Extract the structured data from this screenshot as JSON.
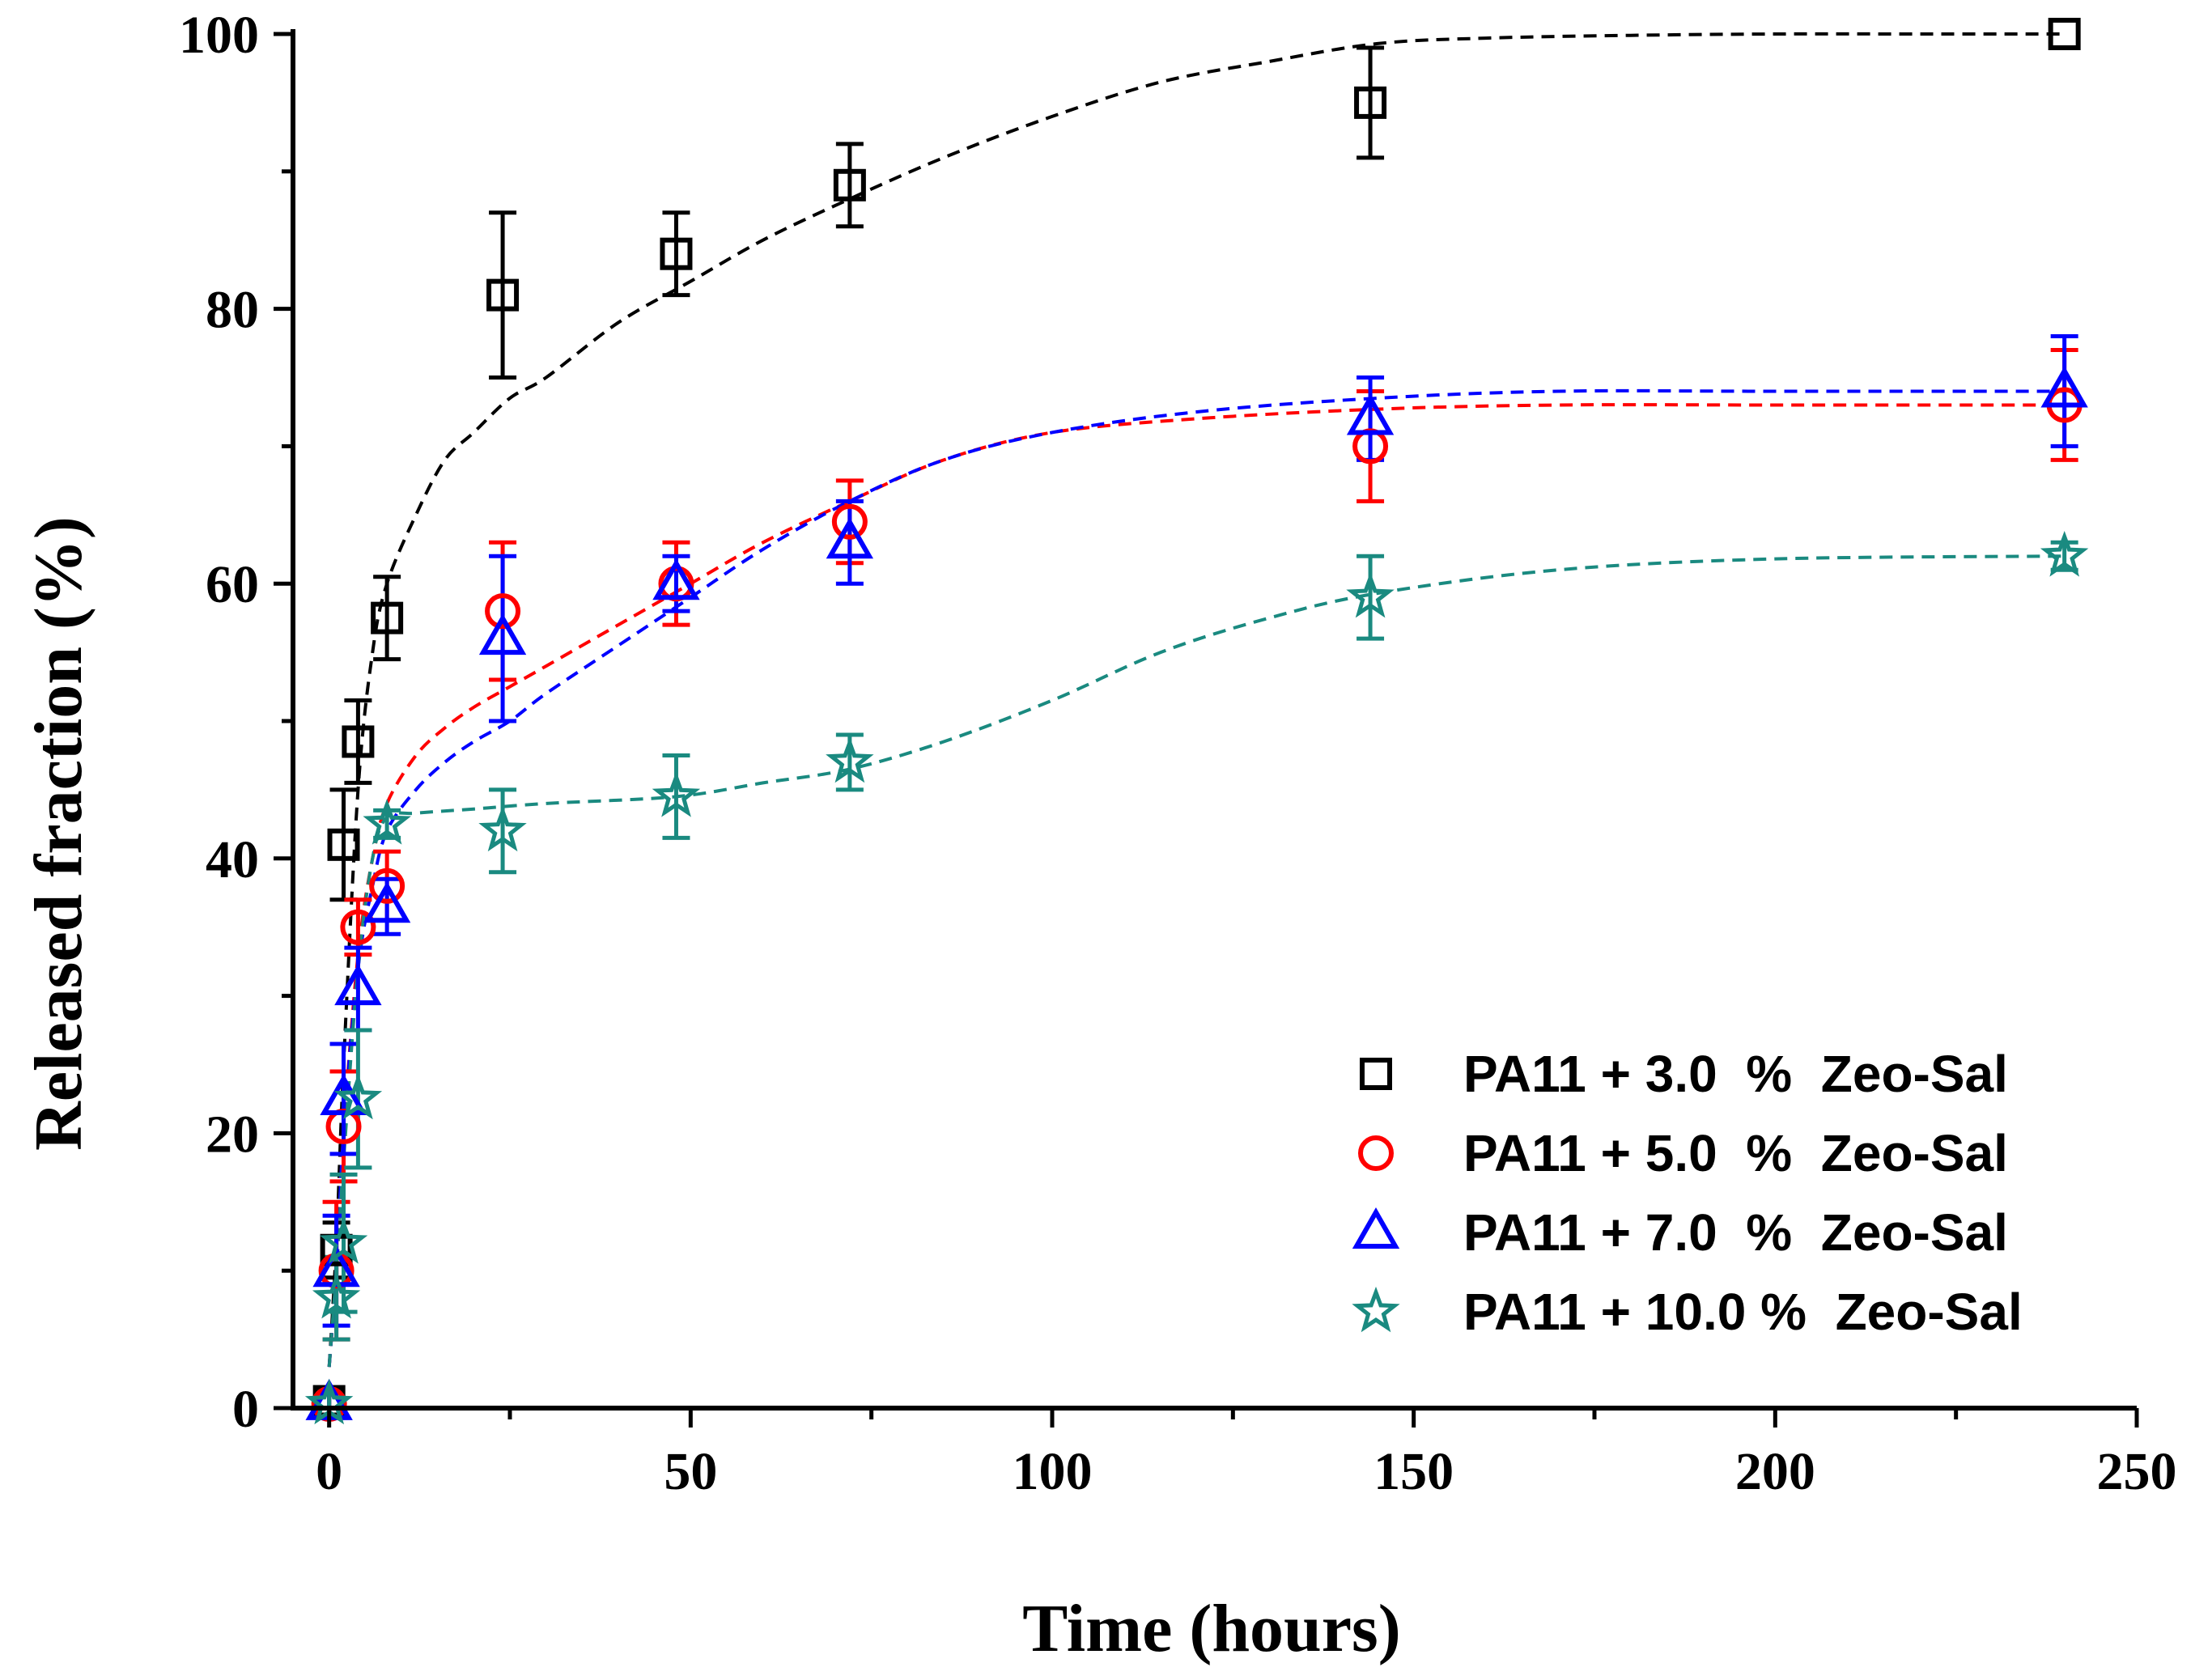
{
  "chart_data": {
    "type": "scatter",
    "title": "",
    "xlabel": "Time (hours)",
    "ylabel": "Released fraction (%)",
    "xlim": [
      -5,
      250
    ],
    "ylim": [
      0,
      100
    ],
    "xticks": [
      0,
      50,
      100,
      150,
      200,
      250
    ],
    "yticks": [
      0,
      20,
      40,
      60,
      80,
      100
    ],
    "x_tick_labels": [
      "0",
      "50",
      "100",
      "150",
      "200",
      "250"
    ],
    "y_tick_labels": [
      "0",
      "20",
      "40",
      "60",
      "80",
      "100"
    ],
    "grid": false,
    "legend_position": "bottom-right",
    "series": [
      {
        "name": "PA11 + 3.0  %  Zeo-Sal",
        "marker": "square",
        "color": "#000000",
        "x": [
          0,
          1,
          2,
          4,
          8,
          24,
          48,
          72,
          144,
          240
        ],
        "y": [
          0.5,
          11.5,
          41,
          48.5,
          57.5,
          81,
          84,
          89,
          95,
          100
        ],
        "err": [
          1,
          2,
          4,
          3,
          3,
          6,
          3,
          3,
          4,
          0.5
        ],
        "fit": {
          "x": [
            0,
            1,
            2,
            4,
            6,
            8,
            12,
            16,
            20,
            25,
            30,
            40,
            50,
            60,
            72,
            85,
            100,
            115,
            130,
            145,
            160,
            180,
            200,
            220,
            240
          ],
          "y": [
            3,
            12,
            25,
            45,
            55,
            60,
            65,
            69,
            71,
            73.5,
            75,
            79,
            82,
            85,
            88,
            91,
            94,
            96.5,
            98,
            99.3,
            99.7,
            99.9,
            100,
            100,
            100
          ]
        }
      },
      {
        "name": "PA11 + 5.0  %  Zeo-Sal",
        "marker": "circle",
        "color": "#ff0000",
        "x": [
          0,
          1,
          2,
          4,
          8,
          24,
          48,
          72,
          144,
          240
        ],
        "y": [
          0.3,
          10,
          20.5,
          35,
          38,
          58,
          60,
          64.5,
          70,
          73
        ],
        "err": [
          1,
          5,
          4,
          2,
          2.5,
          5,
          3,
          3,
          4,
          4
        ],
        "fit": {
          "x": [
            0,
            1,
            2,
            4,
            6,
            8,
            12,
            16,
            20,
            25,
            30,
            40,
            50,
            60,
            72,
            85,
            100,
            120,
            145,
            170,
            200,
            240
          ],
          "y": [
            3,
            10,
            20,
            33,
            40,
            44,
            47.5,
            49.5,
            51,
            52.5,
            54,
            57,
            60,
            63,
            66,
            69,
            71,
            72,
            72.7,
            73,
            73,
            73
          ]
        }
      },
      {
        "name": "PA11 + 7.0  %  Zeo-Sal",
        "marker": "triangle",
        "color": "#0000ff",
        "x": [
          0,
          1,
          2,
          4,
          8,
          24,
          48,
          72,
          144,
          240
        ],
        "y": [
          0.3,
          10,
          22.5,
          30.5,
          36.5,
          56,
          60,
          63,
          72,
          74
        ],
        "err": [
          1,
          4,
          4,
          3,
          2,
          6,
          2,
          3,
          3,
          4
        ],
        "fit": {
          "x": [
            0,
            1,
            2,
            4,
            6,
            8,
            12,
            16,
            20,
            25,
            30,
            40,
            50,
            60,
            72,
            85,
            100,
            120,
            145,
            170,
            200,
            240
          ],
          "y": [
            3,
            10,
            20,
            32,
            38,
            42,
            45,
            47,
            48.5,
            50,
            52,
            55.5,
            59,
            62.5,
            66,
            69,
            71,
            72.5,
            73.5,
            74,
            74,
            74
          ]
        }
      },
      {
        "name": "PA11 + 10.0 %  Zeo-Sal",
        "marker": "star",
        "color": "#1a8a80",
        "x": [
          0,
          1,
          2,
          4,
          8,
          24,
          48,
          72,
          144,
          240
        ],
        "y": [
          0.3,
          8,
          12,
          22.5,
          42.5,
          42,
          44.5,
          47,
          59,
          62
        ],
        "err": [
          1,
          3,
          5,
          5,
          1,
          3,
          3,
          2,
          3,
          1
        ],
        "fit": {
          "x": [
            0,
            1,
            2,
            4,
            6,
            8,
            12,
            20,
            30,
            48,
            60,
            72,
            85,
            100,
            115,
            130,
            145,
            170,
            200,
            240
          ],
          "y": [
            3,
            10,
            18,
            32,
            40,
            43,
            43.3,
            43.6,
            44,
            44.5,
            45.5,
            46.5,
            48.5,
            51.5,
            55,
            57.5,
            59.3,
            61,
            61.8,
            62
          ]
        }
      }
    ]
  }
}
